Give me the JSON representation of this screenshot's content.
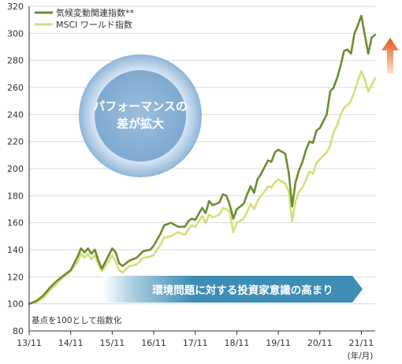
{
  "chart_data": {
    "type": "line",
    "x_unit_label": "(年/月)",
    "x_tick_labels": [
      "13/11",
      "14/11",
      "15/11",
      "16/11",
      "17/11",
      "18/11",
      "19/11",
      "20/11",
      "21/11"
    ],
    "ylim": [
      80,
      320
    ],
    "y_ticks": [
      80,
      100,
      120,
      140,
      160,
      180,
      200,
      220,
      240,
      260,
      280,
      300,
      320
    ],
    "grid": true,
    "legend": "top-left",
    "base_note": "基点を100として指数化",
    "series": [
      {
        "name": "気候変動関連指数**",
        "color": "#6b8e2f",
        "points": [
          [
            "13/11",
            100
          ],
          [
            "14/01",
            102
          ],
          [
            "14/03",
            106
          ],
          [
            "14/05",
            112
          ],
          [
            "14/07",
            117
          ],
          [
            "14/09",
            121
          ],
          [
            "14/11",
            125
          ],
          [
            "15/01",
            135
          ],
          [
            "15/02",
            141
          ],
          [
            "15/03",
            138
          ],
          [
            "15/04",
            141
          ],
          [
            "15/05",
            137
          ],
          [
            "15/06",
            140
          ],
          [
            "15/07",
            132
          ],
          [
            "15/08",
            126
          ],
          [
            "15/10",
            136
          ],
          [
            "15/11",
            141
          ],
          [
            "15/12",
            138
          ],
          [
            "16/01",
            130
          ],
          [
            "16/02",
            128
          ],
          [
            "16/04",
            132
          ],
          [
            "16/06",
            134
          ],
          [
            "16/08",
            139
          ],
          [
            "16/10",
            140
          ],
          [
            "16/11",
            143
          ],
          [
            "17/01",
            152
          ],
          [
            "17/02",
            158
          ],
          [
            "17/04",
            160
          ],
          [
            "17/06",
            157
          ],
          [
            "17/08",
            157
          ],
          [
            "17/09",
            161
          ],
          [
            "17/10",
            163
          ],
          [
            "17/11",
            162
          ],
          [
            "18/01",
            171
          ],
          [
            "18/02",
            167
          ],
          [
            "18/03",
            176
          ],
          [
            "18/04",
            173
          ],
          [
            "18/06",
            175
          ],
          [
            "18/07",
            181
          ],
          [
            "18/08",
            180
          ],
          [
            "18/09",
            173
          ],
          [
            "18/10",
            163
          ],
          [
            "18/11",
            170
          ],
          [
            "19/01",
            174
          ],
          [
            "19/02",
            181
          ],
          [
            "19/03",
            187
          ],
          [
            "19/04",
            182
          ],
          [
            "19/05",
            192
          ],
          [
            "19/06",
            196
          ],
          [
            "19/07",
            201
          ],
          [
            "19/08",
            206
          ],
          [
            "19/09",
            205
          ],
          [
            "19/10",
            212
          ],
          [
            "19/11",
            214
          ],
          [
            "20/01",
            211
          ],
          [
            "20/02",
            197
          ],
          [
            "20/03",
            172
          ],
          [
            "20/04",
            190
          ],
          [
            "20/05",
            199
          ],
          [
            "20/06",
            205
          ],
          [
            "20/07",
            214
          ],
          [
            "20/08",
            220
          ],
          [
            "20/09",
            219
          ],
          [
            "20/10",
            228
          ],
          [
            "20/11",
            230
          ],
          [
            "21/01",
            240
          ],
          [
            "21/02",
            257
          ],
          [
            "21/03",
            260
          ],
          [
            "21/04",
            267
          ],
          [
            "21/05",
            276
          ],
          [
            "21/06",
            287
          ],
          [
            "21/07",
            288
          ],
          [
            "21/08",
            285
          ],
          [
            "21/09",
            300
          ],
          [
            "21/10",
            306
          ],
          [
            "21/11",
            313
          ],
          [
            "21/12",
            299
          ],
          [
            "22/01",
            285
          ],
          [
            "22/02",
            297
          ],
          [
            "22/03",
            299
          ]
        ]
      },
      {
        "name": "MSCI ワールド指数",
        "color": "#d4e07a",
        "points": [
          [
            "13/11",
            100
          ],
          [
            "14/01",
            101
          ],
          [
            "14/03",
            104
          ],
          [
            "14/05",
            110
          ],
          [
            "14/07",
            115
          ],
          [
            "14/09",
            120
          ],
          [
            "14/11",
            124
          ],
          [
            "15/01",
            131
          ],
          [
            "15/02",
            137
          ],
          [
            "15/03",
            134
          ],
          [
            "15/04",
            137
          ],
          [
            "15/05",
            133
          ],
          [
            "15/06",
            136
          ],
          [
            "15/07",
            129
          ],
          [
            "15/08",
            124
          ],
          [
            "15/10",
            132
          ],
          [
            "15/11",
            136
          ],
          [
            "15/12",
            131
          ],
          [
            "16/01",
            125
          ],
          [
            "16/02",
            123
          ],
          [
            "16/04",
            128
          ],
          [
            "16/06",
            129
          ],
          [
            "16/08",
            134
          ],
          [
            "16/10",
            135
          ],
          [
            "16/11",
            136
          ],
          [
            "17/01",
            144
          ],
          [
            "17/02",
            149
          ],
          [
            "17/04",
            150
          ],
          [
            "17/06",
            153
          ],
          [
            "17/08",
            151
          ],
          [
            "17/09",
            155
          ],
          [
            "17/10",
            158
          ],
          [
            "17/11",
            157
          ],
          [
            "18/01",
            165
          ],
          [
            "18/02",
            160
          ],
          [
            "18/03",
            166
          ],
          [
            "18/04",
            164
          ],
          [
            "18/06",
            166
          ],
          [
            "18/07",
            171
          ],
          [
            "18/08",
            170
          ],
          [
            "18/09",
            168
          ],
          [
            "18/10",
            153
          ],
          [
            "18/11",
            160
          ],
          [
            "19/01",
            163
          ],
          [
            "19/02",
            168
          ],
          [
            "19/03",
            174
          ],
          [
            "19/04",
            170
          ],
          [
            "19/05",
            176
          ],
          [
            "19/06",
            180
          ],
          [
            "19/07",
            183
          ],
          [
            "19/08",
            187
          ],
          [
            "19/09",
            186
          ],
          [
            "19/10",
            190
          ],
          [
            "19/11",
            192
          ],
          [
            "20/01",
            189
          ],
          [
            "20/02",
            183
          ],
          [
            "20/03",
            161
          ],
          [
            "20/04",
            176
          ],
          [
            "20/05",
            183
          ],
          [
            "20/06",
            186
          ],
          [
            "20/07",
            192
          ],
          [
            "20/08",
            198
          ],
          [
            "20/09",
            196
          ],
          [
            "20/10",
            204
          ],
          [
            "20/11",
            207
          ],
          [
            "21/01",
            212
          ],
          [
            "21/02",
            217
          ],
          [
            "21/03",
            227
          ],
          [
            "21/04",
            232
          ],
          [
            "21/05",
            240
          ],
          [
            "21/06",
            245
          ],
          [
            "21/07",
            247
          ],
          [
            "21/08",
            250
          ],
          [
            "21/09",
            257
          ],
          [
            "21/10",
            265
          ],
          [
            "21/11",
            272
          ],
          [
            "21/12",
            266
          ],
          [
            "22/01",
            257
          ],
          [
            "22/02",
            262
          ],
          [
            "22/03",
            267
          ]
        ]
      }
    ],
    "annotations": {
      "circle_line1": "パフォーマンスの",
      "circle_line2": "差が拡大",
      "banner": "環境問題に対する投資家意識の高まり"
    },
    "colors": {
      "arrow_up_top": "#e05a1e",
      "arrow_up_bottom": "#f7c79e",
      "banner_dark": "#3d8db5",
      "circle_center": "#ffffff",
      "circle_edge": "#8fb5d8"
    }
  }
}
